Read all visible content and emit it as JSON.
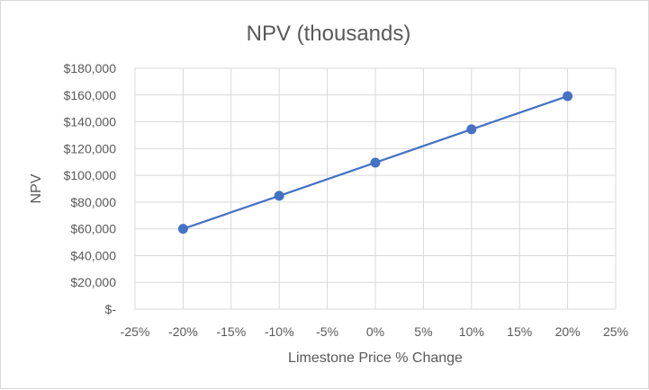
{
  "chart_data": {
    "type": "scatter",
    "title": "NPV (thousands)",
    "xlabel": "Limestone Price % Change",
    "ylabel": "NPV",
    "xlim": [
      -25,
      25
    ],
    "ylim": [
      0,
      180000
    ],
    "x_ticks": [
      "-25%",
      "-20%",
      "-15%",
      "-10%",
      "-5%",
      "0%",
      "5%",
      "10%",
      "15%",
      "20%",
      "25%"
    ],
    "y_ticks": [
      "$-",
      "$20,000",
      "$40,000",
      "$60,000",
      "$80,000",
      "$100,000",
      "$120,000",
      "$140,000",
      "$160,000",
      "$180,000"
    ],
    "grid": true,
    "legend": "none",
    "series": [
      {
        "x": [
          -20,
          -10,
          0,
          10,
          20
        ],
        "y": [
          60000,
          84700,
          109500,
          134400,
          159200
        ],
        "color": "#4472c4",
        "markers": true,
        "lines": true
      }
    ]
  }
}
